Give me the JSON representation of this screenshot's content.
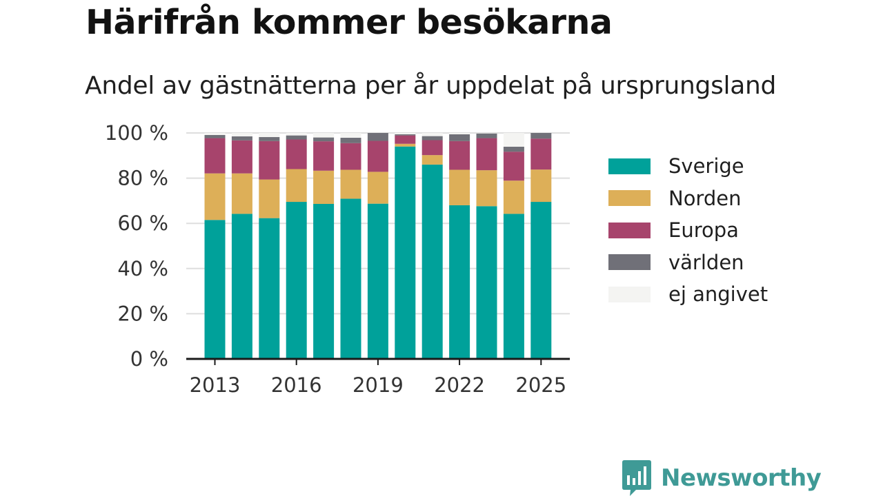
{
  "header": {
    "title": "Härifrån kommer besökarna",
    "subtitle": "Andel av gästnätterna per år uppdelat på ursprungsland"
  },
  "brand": {
    "name": "Newsworthy",
    "logo_icon": "bar-chart-speech-bubble-icon",
    "color": "#3f9a96"
  },
  "chart_data": {
    "type": "bar",
    "stacked": true,
    "categories": [
      "2013",
      "2014",
      "2015",
      "2016",
      "2017",
      "2018",
      "2019",
      "2020",
      "2021",
      "2022",
      "2023",
      "2024",
      "2025"
    ],
    "x_tick_labels": [
      "2013",
      "2016",
      "2019",
      "2022",
      "2025"
    ],
    "y_tick_labels": [
      "0 %",
      "20 %",
      "40 %",
      "60 %",
      "80 %",
      "100 %"
    ],
    "y_ticks": [
      0,
      20,
      40,
      60,
      80,
      100
    ],
    "ylim": [
      0,
      100
    ],
    "grid": true,
    "legend_position": "right",
    "series": [
      {
        "name": "Sverige",
        "color": "#00a19a",
        "values": [
          61.5,
          64.2,
          62.3,
          69.5,
          68.6,
          70.9,
          68.7,
          94.0,
          86.0,
          68.0,
          67.6,
          64.2,
          69.5
        ]
      },
      {
        "name": "Norden",
        "color": "#ddaf58",
        "values": [
          20.6,
          17.9,
          17.1,
          14.5,
          14.7,
          12.8,
          14.1,
          1.2,
          4.2,
          15.7,
          15.9,
          14.7,
          14.3
        ]
      },
      {
        "name": "Europa",
        "color": "#a7446c",
        "values": [
          15.6,
          14.6,
          17.0,
          13.1,
          13.0,
          11.8,
          13.7,
          3.7,
          6.6,
          12.7,
          14.2,
          12.8,
          13.7
        ]
      },
      {
        "name": "världen",
        "color": "#707078",
        "values": [
          1.4,
          1.8,
          1.8,
          1.8,
          1.7,
          2.4,
          3.5,
          0.5,
          1.8,
          3.0,
          2.1,
          2.2,
          2.5
        ]
      },
      {
        "name": "ej angivet",
        "color": "#f4f4f2",
        "values": [
          0.9,
          1.5,
          1.8,
          1.1,
          2.0,
          2.1,
          0.0,
          0.6,
          1.4,
          0.6,
          0.2,
          6.1,
          0.0
        ]
      }
    ]
  }
}
